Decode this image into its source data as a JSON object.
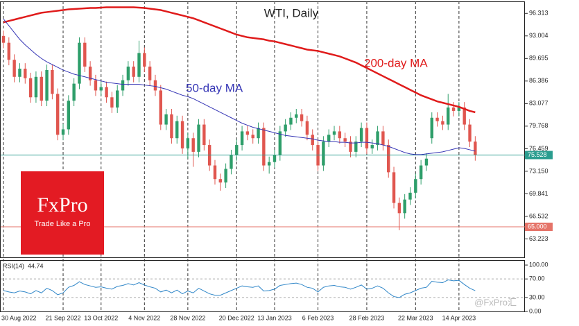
{
  "chart_data": {
    "type": "candlestick",
    "title": "WTI, Daily",
    "categories": [
      "30 Aug 2022",
      null,
      null,
      null,
      null,
      null,
      null,
      null,
      null,
      null,
      null,
      "21 Sep 2022",
      null,
      null,
      null,
      null,
      null,
      null,
      "13 Oct 2022",
      null,
      null,
      null,
      null,
      null,
      null,
      null,
      "4 Nov 2022",
      null,
      null,
      null,
      null,
      null,
      null,
      null,
      "28 Nov 2022",
      null,
      null,
      null,
      null,
      null,
      null,
      null,
      null,
      "20 Dec 2022",
      null,
      null,
      null,
      null,
      null,
      null,
      "13 Jan 2023",
      null,
      null,
      null,
      null,
      null,
      null,
      null,
      "6 Feb 2023",
      null,
      null,
      null,
      null,
      null,
      null,
      null,
      null,
      "28 Feb 2023",
      null,
      null,
      null,
      null,
      null,
      null,
      null,
      null,
      "22 Mar 2023",
      null,
      null,
      null,
      null,
      null,
      null,
      null,
      "14 Apr 2023",
      null,
      null,
      null
    ],
    "ohlc": {
      "up_color": "#2e9e6a",
      "down_color": "#e0564f",
      "open": [
        93.0,
        92.0,
        89.5,
        87.0,
        88.2,
        86.8,
        84.0,
        87.0,
        83.5,
        88.0,
        84.5,
        78.5,
        79.3,
        83.5,
        86.0,
        92.0,
        88.5,
        86.5,
        85.0,
        85.5,
        84.0,
        82.5,
        85.0,
        86.5,
        88.5,
        87.0,
        90.5,
        88.5,
        86.5,
        85.0,
        80.0,
        81.5,
        78.0,
        80.5,
        76.5,
        78.0,
        76.0,
        80.0,
        77.0,
        74.0,
        72.0,
        71.5,
        73.5,
        75.5,
        77.0,
        79.0,
        78.5,
        78.0,
        79.5,
        74.0,
        74.5,
        75.5,
        79.0,
        80.0,
        81.0,
        81.5,
        80.5,
        78.5,
        77.0,
        74.0,
        77.5,
        78.5,
        79.0,
        78.0,
        77.5,
        76.0,
        77.5,
        79.5,
        76.5,
        77.0,
        79.0,
        77.0,
        73.0,
        68.5,
        67.0,
        69.0,
        70.0,
        72.0,
        74.0,
        78.0,
        81.0,
        80.5,
        80.0,
        82.5,
        82.0,
        82.5,
        80.0,
        77.5
      ],
      "high": [
        93.8,
        92.8,
        90.3,
        89.0,
        89.0,
        87.6,
        87.8,
        87.8,
        88.8,
        88.8,
        85.3,
        80.1,
        84.3,
        86.8,
        92.8,
        92.8,
        89.3,
        87.3,
        86.3,
        86.3,
        84.8,
        85.8,
        87.3,
        89.3,
        89.3,
        92.3,
        91.3,
        89.3,
        87.3,
        85.8,
        82.3,
        82.3,
        81.3,
        81.3,
        78.8,
        78.8,
        80.8,
        80.8,
        77.8,
        74.8,
        72.8,
        74.3,
        76.3,
        77.8,
        79.8,
        79.8,
        79.3,
        80.3,
        80.3,
        75.3,
        76.3,
        79.8,
        80.8,
        81.8,
        82.3,
        82.3,
        81.3,
        79.3,
        77.8,
        78.3,
        79.3,
        79.8,
        79.8,
        78.8,
        78.3,
        78.3,
        80.3,
        80.3,
        77.8,
        79.8,
        79.8,
        77.8,
        73.8,
        69.3,
        69.8,
        70.8,
        72.8,
        74.8,
        75.8,
        81.8,
        81.8,
        81.3,
        84.5,
        83.3,
        83.3,
        83.3,
        80.8,
        78.3
      ],
      "low": [
        91.2,
        88.7,
        86.2,
        86.2,
        86.0,
        83.2,
        83.2,
        82.7,
        82.7,
        83.7,
        77.7,
        77.7,
        78.5,
        82.7,
        85.2,
        87.7,
        85.7,
        84.2,
        84.2,
        83.2,
        81.7,
        81.7,
        84.2,
        85.7,
        86.2,
        86.2,
        87.7,
        85.7,
        84.2,
        79.2,
        79.2,
        77.2,
        77.2,
        75.7,
        75.0,
        73.8,
        75.2,
        76.2,
        73.2,
        71.2,
        70.3,
        70.7,
        72.7,
        74.7,
        76.2,
        77.7,
        77.2,
        77.2,
        73.2,
        72.8,
        73.7,
        74.7,
        78.2,
        79.2,
        80.2,
        79.7,
        77.7,
        76.2,
        73.2,
        73.2,
        76.7,
        77.7,
        77.2,
        76.7,
        75.2,
        75.2,
        76.7,
        75.7,
        75.7,
        76.2,
        76.2,
        72.2,
        67.7,
        64.5,
        66.2,
        68.2,
        69.2,
        71.2,
        73.2,
        77.2,
        79.7,
        79.2,
        79.2,
        81.2,
        81.2,
        79.2,
        76.7,
        74.7
      ],
      "close": [
        92.0,
        89.5,
        87.0,
        88.2,
        86.8,
        84.0,
        87.0,
        83.5,
        88.0,
        84.5,
        78.5,
        79.3,
        83.5,
        86.0,
        92.0,
        88.5,
        86.5,
        85.0,
        85.5,
        84.0,
        82.5,
        85.0,
        86.5,
        88.5,
        87.0,
        90.5,
        88.5,
        86.5,
        85.0,
        80.0,
        81.5,
        78.0,
        80.5,
        76.5,
        78.0,
        76.0,
        80.0,
        77.0,
        74.0,
        72.0,
        71.5,
        73.5,
        75.5,
        77.0,
        79.0,
        78.5,
        78.0,
        79.5,
        74.0,
        74.5,
        75.5,
        79.0,
        80.0,
        81.0,
        81.5,
        80.5,
        78.5,
        77.0,
        74.0,
        77.5,
        78.5,
        79.0,
        78.0,
        77.5,
        76.0,
        77.5,
        79.5,
        76.5,
        77.0,
        79.0,
        77.0,
        73.0,
        68.5,
        67.0,
        69.0,
        70.0,
        72.0,
        74.0,
        75.0,
        81.0,
        80.5,
        80.0,
        82.5,
        82.0,
        82.5,
        80.0,
        77.5,
        75.528
      ],
      "price_color": "#2a9d8f"
    },
    "moving_averages": [
      {
        "name": "200-day MA",
        "color": "#e01b1b",
        "width": 2.5,
        "values": [
          95.0,
          95.2,
          95.4,
          95.6,
          95.8,
          96.0,
          96.2,
          96.4,
          96.5,
          96.6,
          96.7,
          96.8,
          96.9,
          96.95,
          97.0,
          97.05,
          97.1,
          97.1,
          97.15,
          97.2,
          97.2,
          97.2,
          97.2,
          97.2,
          97.2,
          97.15,
          97.1,
          97.0,
          96.9,
          96.8,
          96.6,
          96.4,
          96.2,
          96.0,
          95.8,
          95.6,
          95.3,
          95.0,
          94.7,
          94.4,
          94.1,
          93.8,
          93.5,
          93.2,
          93.0,
          92.8,
          92.7,
          92.6,
          92.5,
          92.3,
          92.2,
          92.0,
          91.8,
          91.6,
          91.4,
          91.2,
          91.0,
          90.9,
          90.8,
          90.6,
          90.4,
          90.2,
          90.0,
          89.7,
          89.4,
          89.1,
          88.7,
          88.3,
          87.9,
          87.5,
          87.1,
          86.7,
          86.3,
          85.9,
          85.5,
          85.1,
          84.7,
          84.3,
          84.0,
          83.7,
          83.4,
          83.2,
          83.0,
          82.8,
          82.6,
          82.3,
          82.0,
          81.8
        ]
      },
      {
        "name": "50-day MA",
        "color": "#3535b5",
        "width": 1,
        "values": [
          95.5,
          94.5,
          93.5,
          92.5,
          91.7,
          91.0,
          90.3,
          89.7,
          89.2,
          88.8,
          88.4,
          88.0,
          87.7,
          87.4,
          87.2,
          87.0,
          86.8,
          86.6,
          86.4,
          86.2,
          86.1,
          86.0,
          85.9,
          85.9,
          85.9,
          85.9,
          85.8,
          85.7,
          85.6,
          85.4,
          85.2,
          84.9,
          84.6,
          84.3,
          84.1,
          83.8,
          83.4,
          83.0,
          82.6,
          82.2,
          81.8,
          81.4,
          81.0,
          80.6,
          80.2,
          79.9,
          79.6,
          79.4,
          79.2,
          79.0,
          78.8,
          78.6,
          78.4,
          78.3,
          78.2,
          78.1,
          78.0,
          77.9,
          77.7,
          77.6,
          77.5,
          77.5,
          77.4,
          77.4,
          77.3,
          77.3,
          77.4,
          77.4,
          77.3,
          77.2,
          77.0,
          76.8,
          76.5,
          76.2,
          75.9,
          75.7,
          75.6,
          75.6,
          75.7,
          75.8,
          75.9,
          76.0,
          76.2,
          76.4,
          76.6,
          76.5,
          76.3,
          76.1
        ]
      }
    ],
    "levels": [
      {
        "value": 65,
        "label": "65.000",
        "color": "#e57368"
      }
    ],
    "ylim": [
      60.42,
      98.07
    ],
    "yticks": [
      96.313,
      93.004,
      89.695,
      86.386,
      83.077,
      79.768,
      76.459,
      {
        "value": 73.15,
        "label": "73.150"
      },
      69.841,
      66.532,
      63.223
    ],
    "rsi": {
      "label": "RSI(14)",
      "color": "#2f86c8",
      "ylim": [
        -1.5,
        110.6
      ],
      "yticks": [
        {
          "value": 100,
          "label": "100.00"
        },
        {
          "value": 70,
          "label": "70.00"
        },
        {
          "value": 30,
          "label": "30.00"
        },
        {
          "value": 0,
          "label": "0.00"
        }
      ],
      "values": [
        45,
        42,
        40,
        44,
        42,
        38,
        45,
        40,
        50,
        45,
        36,
        40,
        52,
        56,
        64,
        58,
        55,
        52,
        53,
        50,
        48,
        54,
        56,
        60,
        57,
        62,
        57,
        53,
        50,
        42,
        46,
        40,
        46,
        38,
        44,
        40,
        50,
        44,
        38,
        35,
        35,
        40,
        45,
        50,
        55,
        53,
        52,
        55,
        44,
        45,
        48,
        56,
        58,
        60,
        61,
        58,
        52,
        50,
        42,
        52,
        55,
        56,
        53,
        52,
        48,
        52,
        57,
        48,
        50,
        55,
        50,
        40,
        32,
        30,
        37,
        40,
        45,
        50,
        52,
        65,
        63,
        62,
        68,
        66,
        67,
        58,
        50,
        44.74
      ]
    }
  },
  "branding": {
    "logo": "FxPro",
    "tagline": "Trade Like a Pro",
    "watermark": "@FxPro汇"
  }
}
